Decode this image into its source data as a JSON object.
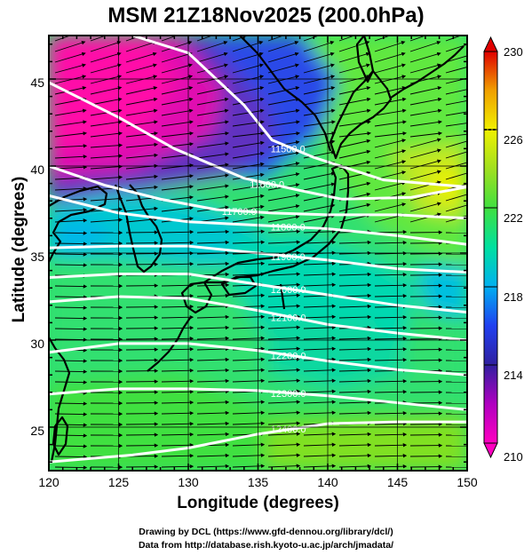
{
  "title": "MSM 21Z18Nov2025 (200.0hPa)",
  "xlabel": "Longitude (degrees)",
  "ylabel": "Latitude  (degrees)",
  "x_ticks": [
    "120",
    "125",
    "130",
    "135",
    "140",
    "145",
    "150"
  ],
  "y_ticks": [
    "25",
    "30",
    "35",
    "40",
    "45"
  ],
  "colorbar_ticks": [
    "210",
    "214",
    "218",
    "222",
    "226",
    "230"
  ],
  "contour_labels": [
    "11500.0",
    "11600.0",
    "11700.0",
    "11800.0",
    "11900.0",
    "12000.0",
    "12100.0",
    "12200.0",
    "12300.0",
    "12400.0"
  ],
  "credits": {
    "line1": "Drawing by DCL (https://www.gfd-dennou.org/library/dcl/)",
    "line2": "Data from http://database.rish.kyoto-u.ac.jp/arch/jmadata/"
  },
  "chart_data": {
    "type": "heatmap",
    "title": "MSM 21Z18Nov2025 (200.0hPa)",
    "xlabel": "Longitude (degrees)",
    "ylabel": "Latitude  (degrees)",
    "xlim": [
      120,
      150
    ],
    "ylim": [
      22.5,
      47.5
    ],
    "colorbar": {
      "min": 210,
      "max": 230,
      "ticks": [
        210,
        214,
        218,
        222,
        226,
        230
      ]
    },
    "colors": {
      "cmap": [
        "#ff00a0",
        "#b000c0",
        "#3a1ea8",
        "#2040f0",
        "#00b0f0",
        "#00e0a0",
        "#40e040",
        "#a0e020",
        "#f0f000",
        "#f0a000",
        "#e00000"
      ]
    },
    "contours": [
      {
        "label": "11500.0",
        "pts": [
          [
            126,
            47.5
          ],
          [
            130,
            46.5
          ],
          [
            134,
            43.5
          ],
          [
            136,
            41.5
          ],
          [
            139,
            40.5
          ],
          [
            144,
            39.2
          ],
          [
            150,
            38.8
          ]
        ]
      },
      {
        "label": "11600.0",
        "pts": [
          [
            120,
            44.8
          ],
          [
            125,
            42.8
          ],
          [
            129,
            41.0
          ],
          [
            134,
            39.3
          ],
          [
            138,
            38.6
          ],
          [
            141,
            38.1
          ],
          [
            146,
            38.2
          ],
          [
            150,
            38.8
          ]
        ]
      },
      {
        "label": "11700.0",
        "pts": [
          [
            120,
            40.0
          ],
          [
            124,
            38.9
          ],
          [
            128,
            38.1
          ],
          [
            132,
            37.5
          ],
          [
            136,
            37.3
          ],
          [
            140,
            37.2
          ],
          [
            145,
            37.2
          ],
          [
            150,
            37.0
          ]
        ]
      },
      {
        "label": "11800.0",
        "pts": [
          [
            120,
            38.3
          ],
          [
            125,
            37.3
          ],
          [
            130,
            36.8
          ],
          [
            135,
            36.6
          ],
          [
            140,
            36.4
          ],
          [
            145,
            36.0
          ],
          [
            150,
            35.5
          ]
        ]
      },
      {
        "label": "11900.0",
        "pts": [
          [
            120,
            35.3
          ],
          [
            125,
            35.4
          ],
          [
            130,
            35.4
          ],
          [
            135,
            35.0
          ],
          [
            140,
            34.6
          ],
          [
            145,
            34.1
          ],
          [
            150,
            33.9
          ]
        ]
      },
      {
        "label": "12000.0",
        "pts": [
          [
            120,
            33.6
          ],
          [
            125,
            33.8
          ],
          [
            130,
            33.8
          ],
          [
            135,
            33.2
          ],
          [
            140,
            32.6
          ],
          [
            145,
            32.0
          ],
          [
            150,
            31.6
          ]
        ]
      },
      {
        "label": "12100.0",
        "pts": [
          [
            120,
            32.2
          ],
          [
            125,
            32.5
          ],
          [
            130,
            32.4
          ],
          [
            135,
            31.7
          ],
          [
            140,
            30.9
          ],
          [
            145,
            30.4
          ],
          [
            150,
            30.0
          ]
        ]
      },
      {
        "label": "12200.0",
        "pts": [
          [
            120,
            29.3
          ],
          [
            125,
            29.8
          ],
          [
            130,
            29.8
          ],
          [
            135,
            29.4
          ],
          [
            140,
            28.8
          ],
          [
            145,
            28.3
          ],
          [
            150,
            28.0
          ]
        ]
      },
      {
        "label": "12300.0",
        "pts": [
          [
            120,
            26.9
          ],
          [
            125,
            27.2
          ],
          [
            130,
            27.2
          ],
          [
            135,
            27.1
          ],
          [
            140,
            26.8
          ],
          [
            145,
            26.4
          ],
          [
            150,
            26.0
          ]
        ]
      },
      {
        "label": "12400.0",
        "pts": [
          [
            120,
            23.0
          ],
          [
            126,
            23.4
          ],
          [
            130,
            23.8
          ],
          [
            135,
            24.6
          ],
          [
            140,
            25.2
          ],
          [
            145,
            25.3
          ],
          [
            150,
            25.3
          ]
        ]
      }
    ]
  }
}
